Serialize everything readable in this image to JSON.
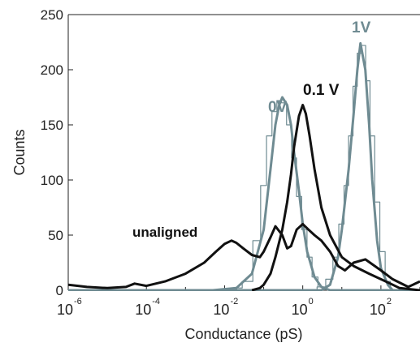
{
  "chart_data": {
    "type": "line",
    "xlabel": "Conductance (pS)",
    "ylabel": "Counts",
    "x_scale": "log10",
    "xlim": [
      1e-06,
      1000
    ],
    "ylim": [
      0,
      250
    ],
    "x_ticks": [
      {
        "base": "10",
        "exp": "-6",
        "value": 1e-06
      },
      {
        "base": "10",
        "exp": "-4",
        "value": 0.0001
      },
      {
        "base": "10",
        "exp": "-2",
        "value": 0.01
      },
      {
        "base": "10",
        "exp": "0",
        "value": 1
      },
      {
        "base": "10",
        "exp": "2",
        "value": 100
      }
    ],
    "y_ticks": [
      {
        "label": "0",
        "value": 0
      },
      {
        "label": "50",
        "value": 50
      },
      {
        "label": "100",
        "value": 100
      },
      {
        "label": "150",
        "value": 150
      },
      {
        "label": "200",
        "value": 200
      },
      {
        "label": "250",
        "value": 250
      }
    ],
    "annotations": [
      {
        "text": "0V",
        "color": "#6f8b92"
      },
      {
        "text": "0.1 V",
        "color": "#111111"
      },
      {
        "text": "1V",
        "color": "#6f8b92"
      },
      {
        "text": "unaligned",
        "color": "#111111"
      }
    ],
    "colors": {
      "gray": "#6f8b92",
      "black": "#111111"
    },
    "series": [
      {
        "key": "0V",
        "color": "#6f8b92",
        "width": 3,
        "x": [
          1e-06,
          0.0001,
          0.005,
          0.02,
          0.05,
          0.1,
          0.15,
          0.2,
          0.25,
          0.3,
          0.4,
          0.5,
          0.6,
          0.8,
          1.0,
          1.3,
          2,
          3,
          5,
          10,
          1000
        ],
        "y": [
          0,
          0,
          0,
          2,
          15,
          55,
          110,
          150,
          168,
          175,
          168,
          150,
          125,
          90,
          60,
          35,
          12,
          3,
          0,
          0,
          0
        ]
      },
      {
        "key": "0V-hist",
        "color": "#6f8b92",
        "width": 1.2,
        "style": "step",
        "x": [
          0.02,
          0.04,
          0.07,
          0.1,
          0.14,
          0.19,
          0.25,
          0.33,
          0.45,
          0.6,
          0.8,
          1.1,
          1.5,
          2,
          3
        ],
        "y": [
          2,
          8,
          45,
          95,
          140,
          162,
          172,
          170,
          150,
          120,
          85,
          55,
          30,
          12,
          3
        ]
      },
      {
        "key": "1V",
        "color": "#6f8b92",
        "width": 3,
        "x": [
          1e-06,
          1,
          3,
          5,
          8,
          10,
          15,
          20,
          25,
          30,
          40,
          50,
          60,
          80,
          100,
          150,
          200,
          300,
          1000
        ],
        "y": [
          0,
          0,
          0,
          5,
          30,
          55,
          110,
          160,
          200,
          224,
          200,
          150,
          100,
          45,
          20,
          5,
          0,
          0,
          0
        ]
      },
      {
        "key": "1V-hist",
        "color": "#6f8b92",
        "width": 1.2,
        "style": "step",
        "x": [
          3,
          5,
          7,
          10,
          13,
          17,
          22,
          28,
          36,
          46,
          60,
          80,
          110,
          150
        ],
        "y": [
          3,
          10,
          30,
          60,
          95,
          140,
          185,
          215,
          222,
          190,
          140,
          80,
          35,
          8
        ]
      },
      {
        "key": "0.1 V",
        "color": "#111111",
        "width": 3,
        "x": [
          0.05,
          0.08,
          0.1,
          0.15,
          0.2,
          0.3,
          0.4,
          0.5,
          0.6,
          0.8,
          1.0,
          1.2,
          1.5,
          2,
          3,
          5,
          10,
          20,
          50,
          100,
          200,
          300,
          1000
        ],
        "y": [
          0,
          2,
          5,
          15,
          30,
          55,
          80,
          105,
          130,
          158,
          168,
          160,
          140,
          110,
          75,
          50,
          30,
          22,
          15,
          10,
          5,
          2,
          0
        ]
      },
      {
        "key": "unaligned",
        "color": "#111111",
        "width": 3,
        "x": [
          1e-06,
          3e-06,
          1e-05,
          3e-05,
          5e-05,
          0.0001,
          0.0003,
          0.001,
          0.003,
          0.006,
          0.01,
          0.015,
          0.02,
          0.03,
          0.05,
          0.08,
          0.1,
          0.15,
          0.2,
          0.3,
          0.4,
          0.5,
          0.7,
          1.0,
          1.4,
          2,
          3,
          5,
          8,
          12,
          20,
          40,
          100,
          200,
          500,
          1000
        ],
        "y": [
          5,
          3,
          2,
          3,
          6,
          4,
          8,
          15,
          25,
          35,
          42,
          45,
          43,
          38,
          32,
          30,
          35,
          48,
          58,
          50,
          38,
          40,
          55,
          60,
          55,
          50,
          45,
          35,
          22,
          18,
          25,
          28,
          18,
          10,
          3,
          8
        ]
      }
    ]
  }
}
